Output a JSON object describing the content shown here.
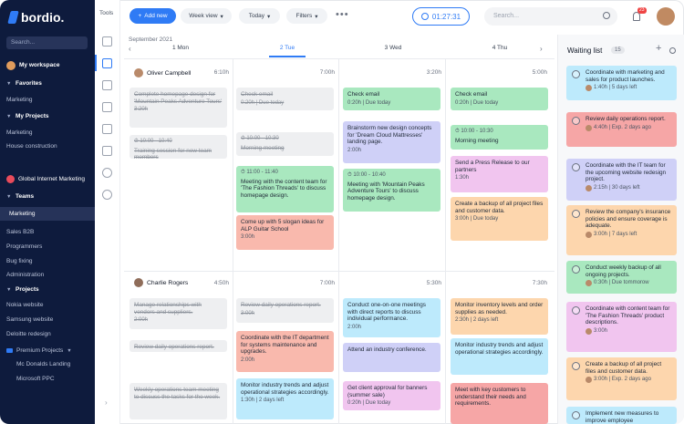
{
  "app": {
    "logo": "bordio."
  },
  "sidebar": {
    "search_placeholder": "Search...",
    "workspace": "My workspace",
    "favorites": "Favorites",
    "fav_items": [
      "Marketing"
    ],
    "my_projects": "My Projects",
    "project_items": [
      "Marketing",
      "House construction"
    ],
    "org": "Global Internet Marketing",
    "teams": "Teams",
    "team_items": [
      "Marketing",
      "Sales B2B",
      "Programmers",
      "Bug fixing",
      "Administration"
    ],
    "projects": "Projects",
    "projects_items": [
      "Nokia website",
      "Samsung website",
      "Deloitte redesign"
    ],
    "premium": "Premium Projects",
    "premium_items": [
      "Mc Donalds Landing",
      "Microsoft PPC"
    ]
  },
  "tools": {
    "label": "Tools"
  },
  "toolbar": {
    "add_label": "Add new",
    "week_view": "Week view",
    "today": "Today",
    "filters": "Filters",
    "more": "•••",
    "timer": "01:27:31",
    "search_placeholder": "Search...",
    "notifications": "23"
  },
  "calendar": {
    "month": "September 2021",
    "days": [
      "1 Mon",
      "2 Tue",
      "3 Wed",
      "4 Thu"
    ],
    "rows": [
      {
        "person": "Oliver Campbell",
        "hours": [
          "6:10h",
          "7:00h",
          "3:20h",
          "5:00h"
        ]
      },
      {
        "person": "Charlie Rogers",
        "hours": [
          "4:50h",
          "7:00h",
          "5:30h",
          "7:30h"
        ]
      }
    ],
    "cards": {
      "r1d1": [
        {
          "title": "Complete homepage design for 'Mountain Peaks Adventure Tours'",
          "meta": "3:20h",
          "done": true
        },
        {
          "title": "Training session for new team members",
          "meta": "10:00 - 10:40",
          "time": true,
          "done": true
        }
      ],
      "r1d2": [
        {
          "title": "Check email",
          "meta": "0:20h | Due today",
          "done": true
        },
        {
          "title": "Morning meeting",
          "meta": "10:00 - 10:30",
          "time": true,
          "done": true
        },
        {
          "title": "Meeting with the content team for 'The Fashion Threads' to discuss homepage design.",
          "meta": "11:00 - 11:40",
          "time": true,
          "color": "green"
        },
        {
          "title": "Come up with 5 slogan ideas for ALP Guitar School",
          "meta": "3:00h",
          "color": "salmon"
        }
      ],
      "r1d3": [
        {
          "title": "Check email",
          "meta": "0:20h | Due today",
          "color": "green"
        },
        {
          "title": "Brainstorm new design concepts for 'Dream Cloud Mattresses' landing page.",
          "meta": "2:00h",
          "color": "purple"
        },
        {
          "title": "Meeting with 'Mountain Peaks Adventure Tours' to discuss homepage design.",
          "meta": "10:00 - 10:40",
          "time": true,
          "color": "green"
        }
      ],
      "r1d4": [
        {
          "title": "Check email",
          "meta": "0:20h | Due today",
          "color": "green"
        },
        {
          "title": "Morning meeting",
          "meta": "10:00 - 10:30",
          "time": true,
          "color": "green"
        },
        {
          "title": "Send a Press Release to our partners",
          "meta": "1:30h",
          "color": "pink"
        },
        {
          "title": "Create a backup of all project files and customer data.",
          "meta": "3:00h | Due today",
          "color": "orange"
        }
      ],
      "r2d1": [
        {
          "title": "Manage relationships with vendors and suppliers.",
          "meta": "2:00h",
          "done": true
        },
        {
          "title": "Review daily operations report.",
          "meta": "",
          "done": true
        },
        {
          "title": "Weekly operations team meeting to discuss the tasks for the week.",
          "meta": "",
          "done": true
        }
      ],
      "r2d2": [
        {
          "title": "Review daily operations report.",
          "meta": "3:00h",
          "done": true
        },
        {
          "title": "Coordinate with the IT department for systems maintenance and upgrades.",
          "meta": "2:00h",
          "color": "salmon"
        },
        {
          "title": "Monitor industry trends and adjust operational strategies accordingly.",
          "meta": "1:30h | 2 days left",
          "color": "blue"
        }
      ],
      "r2d3": [
        {
          "title": "Conduct one-on-one meetings with direct reports to discuss individual performance.",
          "meta": "2:00h",
          "color": "blue"
        },
        {
          "title": "Attend an industry conference.",
          "meta": "",
          "color": "purple"
        },
        {
          "title": "Get client approval for banners (summer sale)",
          "meta": "0:20h | Due today",
          "color": "pink"
        }
      ],
      "r2d4": [
        {
          "title": "Monitor inventory levels and order supplies as needed.",
          "meta": "2:30h | 2 days left",
          "color": "orange"
        },
        {
          "title": "Monitor industry trends and adjust operational strategies accordingly.",
          "meta": "",
          "color": "blue"
        },
        {
          "title": "Meet with key customers to understand their needs and requirements.",
          "meta": "",
          "color": "red"
        }
      ]
    }
  },
  "waiting": {
    "title": "Waiting list",
    "count": "15",
    "items": [
      {
        "title": "Coordinate with marketing and sales for product launches.",
        "meta": "1:40h | 5 days left",
        "color": "blue"
      },
      {
        "title": "Review daily operations report.",
        "meta": "4:40h | Exp. 2 days ago",
        "color": "red"
      },
      {
        "title": "Coordinate with the IT team for the upcoming website redesign project.",
        "meta": "2:15h | 30 days left",
        "color": "purple"
      },
      {
        "title": "Review the company's insurance policies and ensure coverage is adequate.",
        "meta": "3:00h | 7 days left",
        "color": "orange"
      },
      {
        "title": "Conduct weekly backup of all ongoing projects.",
        "meta": "0:30h | Due tommorow",
        "color": "green"
      },
      {
        "title": "Coordinate with content team for 'The Fashion Threads' product descriptions.",
        "meta": "3:00h",
        "color": "pink"
      },
      {
        "title": "Create a backup of all project files and customer data.",
        "meta": "3:00h | Exp. 2 days ago",
        "color": "orange"
      },
      {
        "title": "Implement new measures to improve employee",
        "meta": "",
        "color": "blue"
      }
    ]
  }
}
